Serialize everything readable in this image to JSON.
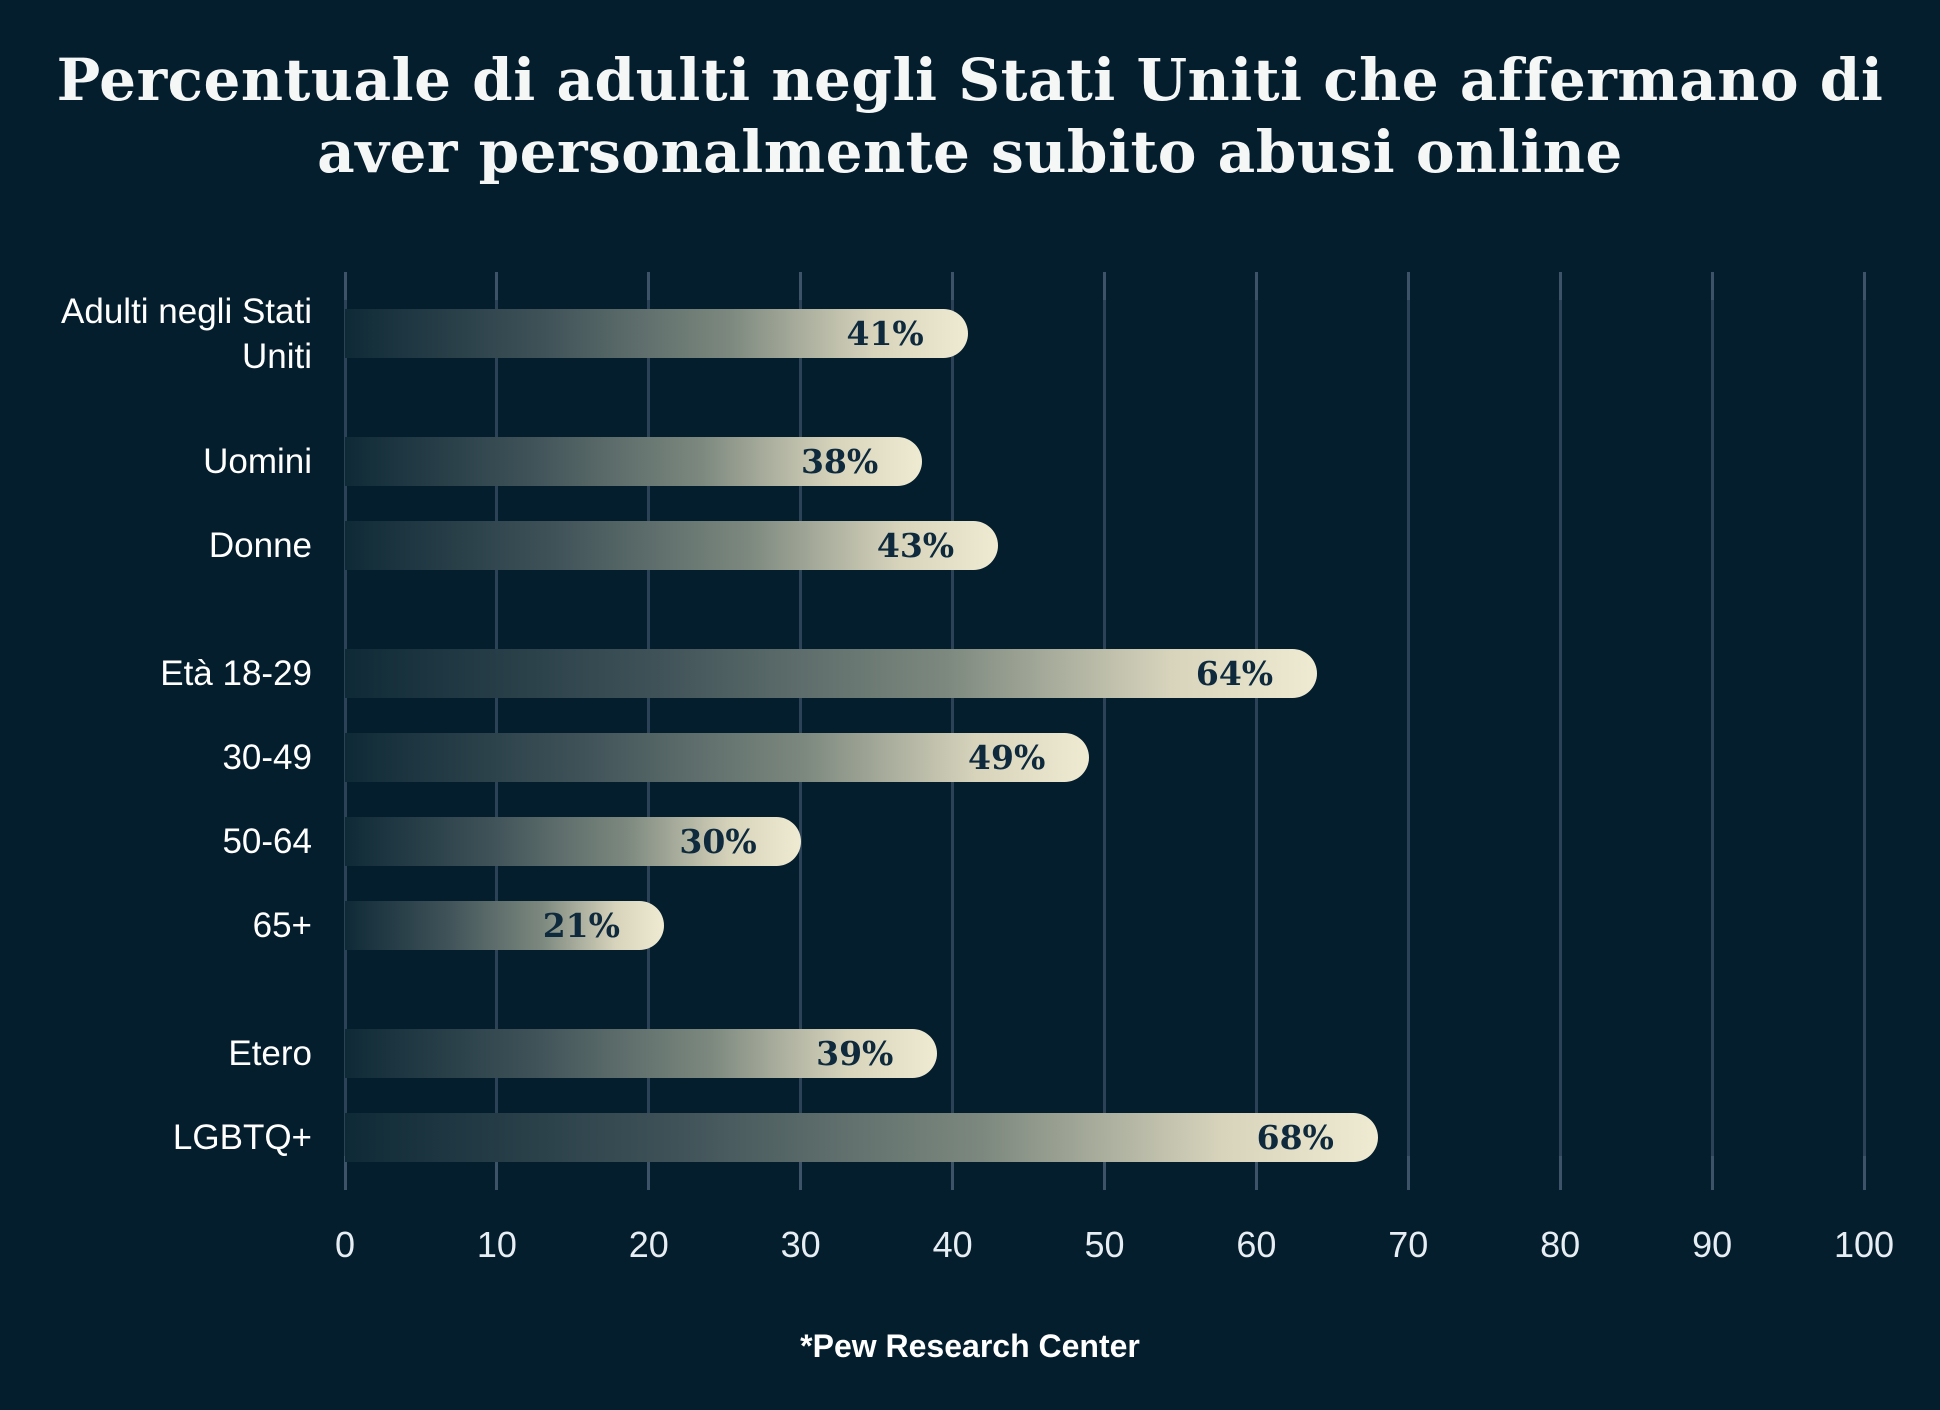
{
  "title": {
    "line1": "Percentuale di adulti negli Stati Uniti che affermano di",
    "line2": "aver personalmente subito abusi online"
  },
  "chart_data": {
    "type": "bar",
    "orientation": "horizontal",
    "title": "Percentuale di adulti negli Stati Uniti che affermano di aver personalmente subito abusi online",
    "categories": [
      "Adulti negli Stati Uniti",
      "Uomini",
      "Donne",
      "Età 18-29",
      "30-49",
      "50-64",
      "65+",
      "Etero",
      "LGBTQ+"
    ],
    "values": [
      41,
      38,
      43,
      64,
      49,
      30,
      21,
      39,
      68
    ],
    "value_labels": [
      "41%",
      "38%",
      "43%",
      "64%",
      "49%",
      "30%",
      "21%",
      "39%",
      "68%"
    ],
    "group_starts": [
      0,
      1,
      3,
      7
    ],
    "x_ticks": [
      0,
      10,
      20,
      30,
      40,
      50,
      60,
      70,
      80,
      90,
      100
    ],
    "xlim": [
      0,
      100
    ],
    "xlabel": "",
    "ylabel": "",
    "grid": "vertical",
    "legend": "none",
    "source": "*Pew Research Center"
  },
  "colors": {
    "background": "#041E2D",
    "gridline": "#2C4256",
    "bar_gradient_start": "#0F2A37",
    "bar_gradient_mid": "#7D897F",
    "bar_gradient_end": "#EFEBD3",
    "value_text": "#0E2A3C",
    "category_text": "#FFFFFF",
    "axis_text": "#E7EEF3",
    "title_text": "#F5F7F6",
    "source_text": "#FFFFFF"
  }
}
